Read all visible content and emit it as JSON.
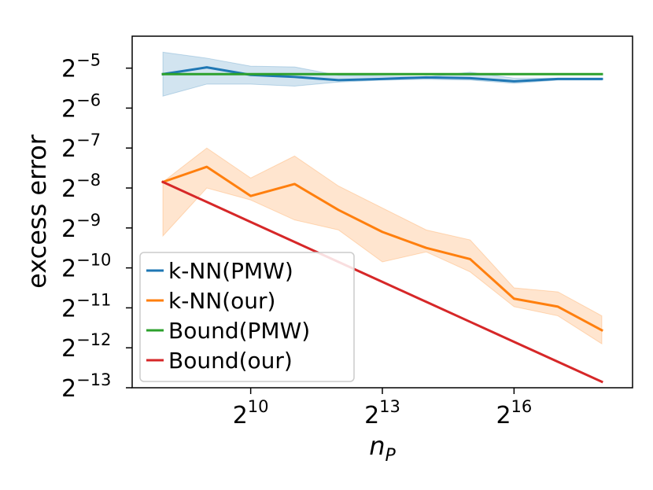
{
  "chart_data": {
    "type": "line",
    "xlabel_base": "n",
    "xlabel_sub": "P",
    "ylabel": "excess error",
    "x_log2": [
      8,
      9,
      10,
      11,
      12,
      13,
      14,
      15,
      16,
      17,
      18
    ],
    "xlim_log2": [
      7.3,
      18.7
    ],
    "ylim_log2": [
      -13,
      -4.2
    ],
    "xticks": [
      {
        "base": "2",
        "exp": "10",
        "v": 10
      },
      {
        "base": "2",
        "exp": "13",
        "v": 13
      },
      {
        "base": "2",
        "exp": "16",
        "v": 16
      }
    ],
    "yticks": [
      {
        "base": "2",
        "exp": "−5",
        "v": -5
      },
      {
        "base": "2",
        "exp": "−6",
        "v": -6
      },
      {
        "base": "2",
        "exp": "−7",
        "v": -7
      },
      {
        "base": "2",
        "exp": "−8",
        "v": -8
      },
      {
        "base": "2",
        "exp": "−9",
        "v": -9
      },
      {
        "base": "2",
        "exp": "−10",
        "v": -10
      },
      {
        "base": "2",
        "exp": "−11",
        "v": -11
      },
      {
        "base": "2",
        "exp": "−12",
        "v": -12
      },
      {
        "base": "2",
        "exp": "−13",
        "v": -13
      }
    ],
    "series": [
      {
        "name": "k-NN(PMW)",
        "color": "#1f77b4",
        "values_log2": [
          -5.15,
          -4.98,
          -5.17,
          -5.22,
          -5.3,
          -5.27,
          -5.23,
          -5.25,
          -5.33,
          -5.27,
          -5.27
        ],
        "band_upper_log2": [
          -4.6,
          -4.75,
          -4.95,
          -4.97,
          -5.18,
          -5.2,
          -5.22,
          -5.1,
          -5.25,
          -5.25,
          -5.25
        ],
        "band_lower_log2": [
          -5.7,
          -5.4,
          -5.4,
          -5.45,
          -5.35,
          -5.3,
          -5.28,
          -5.3,
          -5.38,
          -5.3,
          -5.3
        ]
      },
      {
        "name": "k-NN(our)",
        "color": "#ff7f0e",
        "values_log2": [
          -7.85,
          -7.47,
          -8.2,
          -7.9,
          -8.55,
          -9.1,
          -9.5,
          -9.78,
          -10.77,
          -10.97,
          -11.56
        ],
        "band_upper_log2": [
          -7.85,
          -7.0,
          -7.75,
          -7.2,
          -7.95,
          -8.5,
          -9.05,
          -9.3,
          -10.5,
          -10.6,
          -11.2
        ],
        "band_lower_log2": [
          -9.2,
          -8.0,
          -8.3,
          -8.8,
          -9.05,
          -9.85,
          -9.6,
          -10.1,
          -10.97,
          -11.2,
          -11.9
        ]
      },
      {
        "name": "Bound(PMW)",
        "color": "#2ca02c",
        "values_log2": [
          -5.15,
          -5.15,
          -5.15,
          -5.15,
          -5.15,
          -5.15,
          -5.15,
          -5.15,
          -5.15,
          -5.15,
          -5.15
        ]
      },
      {
        "name": "Bound(our)",
        "color": "#d62728",
        "values_log2": [
          -7.85,
          -8.35,
          -8.85,
          -9.35,
          -9.85,
          -10.35,
          -10.85,
          -11.35,
          -11.85,
          -12.35,
          -12.85
        ]
      }
    ],
    "legend_position": "lower-left"
  }
}
